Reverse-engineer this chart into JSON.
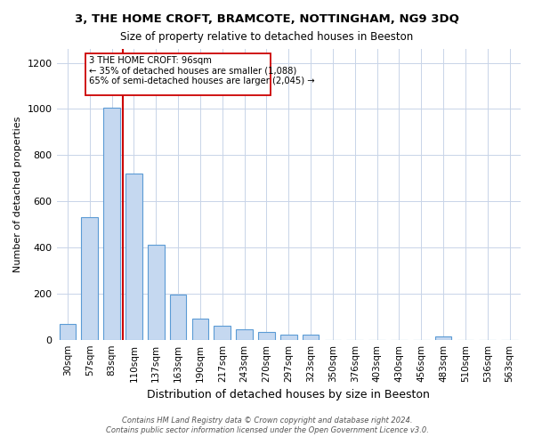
{
  "title": "3, THE HOME CROFT, BRAMCOTE, NOTTINGHAM, NG9 3DQ",
  "subtitle": "Size of property relative to detached houses in Beeston",
  "xlabel": "Distribution of detached houses by size in Beeston",
  "ylabel": "Number of detached properties",
  "bin_labels": [
    "30sqm",
    "57sqm",
    "83sqm",
    "110sqm",
    "137sqm",
    "163sqm",
    "190sqm",
    "217sqm",
    "243sqm",
    "270sqm",
    "297sqm",
    "323sqm",
    "350sqm",
    "376sqm",
    "403sqm",
    "430sqm",
    "456sqm",
    "483sqm",
    "510sqm",
    "536sqm",
    "563sqm"
  ],
  "bar_heights": [
    70,
    530,
    1005,
    720,
    410,
    197,
    90,
    60,
    45,
    33,
    20,
    20,
    0,
    0,
    0,
    0,
    0,
    14,
    0,
    0,
    0
  ],
  "bar_color": "#c5d8f0",
  "bar_edge_color": "#5b9bd5",
  "vline_color": "#cc0000",
  "annotation_text_line1": "3 THE HOME CROFT: 96sqm",
  "annotation_text_line2": "← 35% of detached houses are smaller (1,088)",
  "annotation_text_line3": "65% of semi-detached houses are larger (2,045) →",
  "annotation_box_color": "#ffffff",
  "annotation_box_edge": "#cc0000",
  "ylim": [
    0,
    1260
  ],
  "yticks": [
    0,
    200,
    400,
    600,
    800,
    1000,
    1200
  ],
  "footer1": "Contains HM Land Registry data © Crown copyright and database right 2024.",
  "footer2": "Contains public sector information licensed under the Open Government Licence v3.0.",
  "background_color": "#ffffff",
  "grid_color": "#c8d4e8"
}
